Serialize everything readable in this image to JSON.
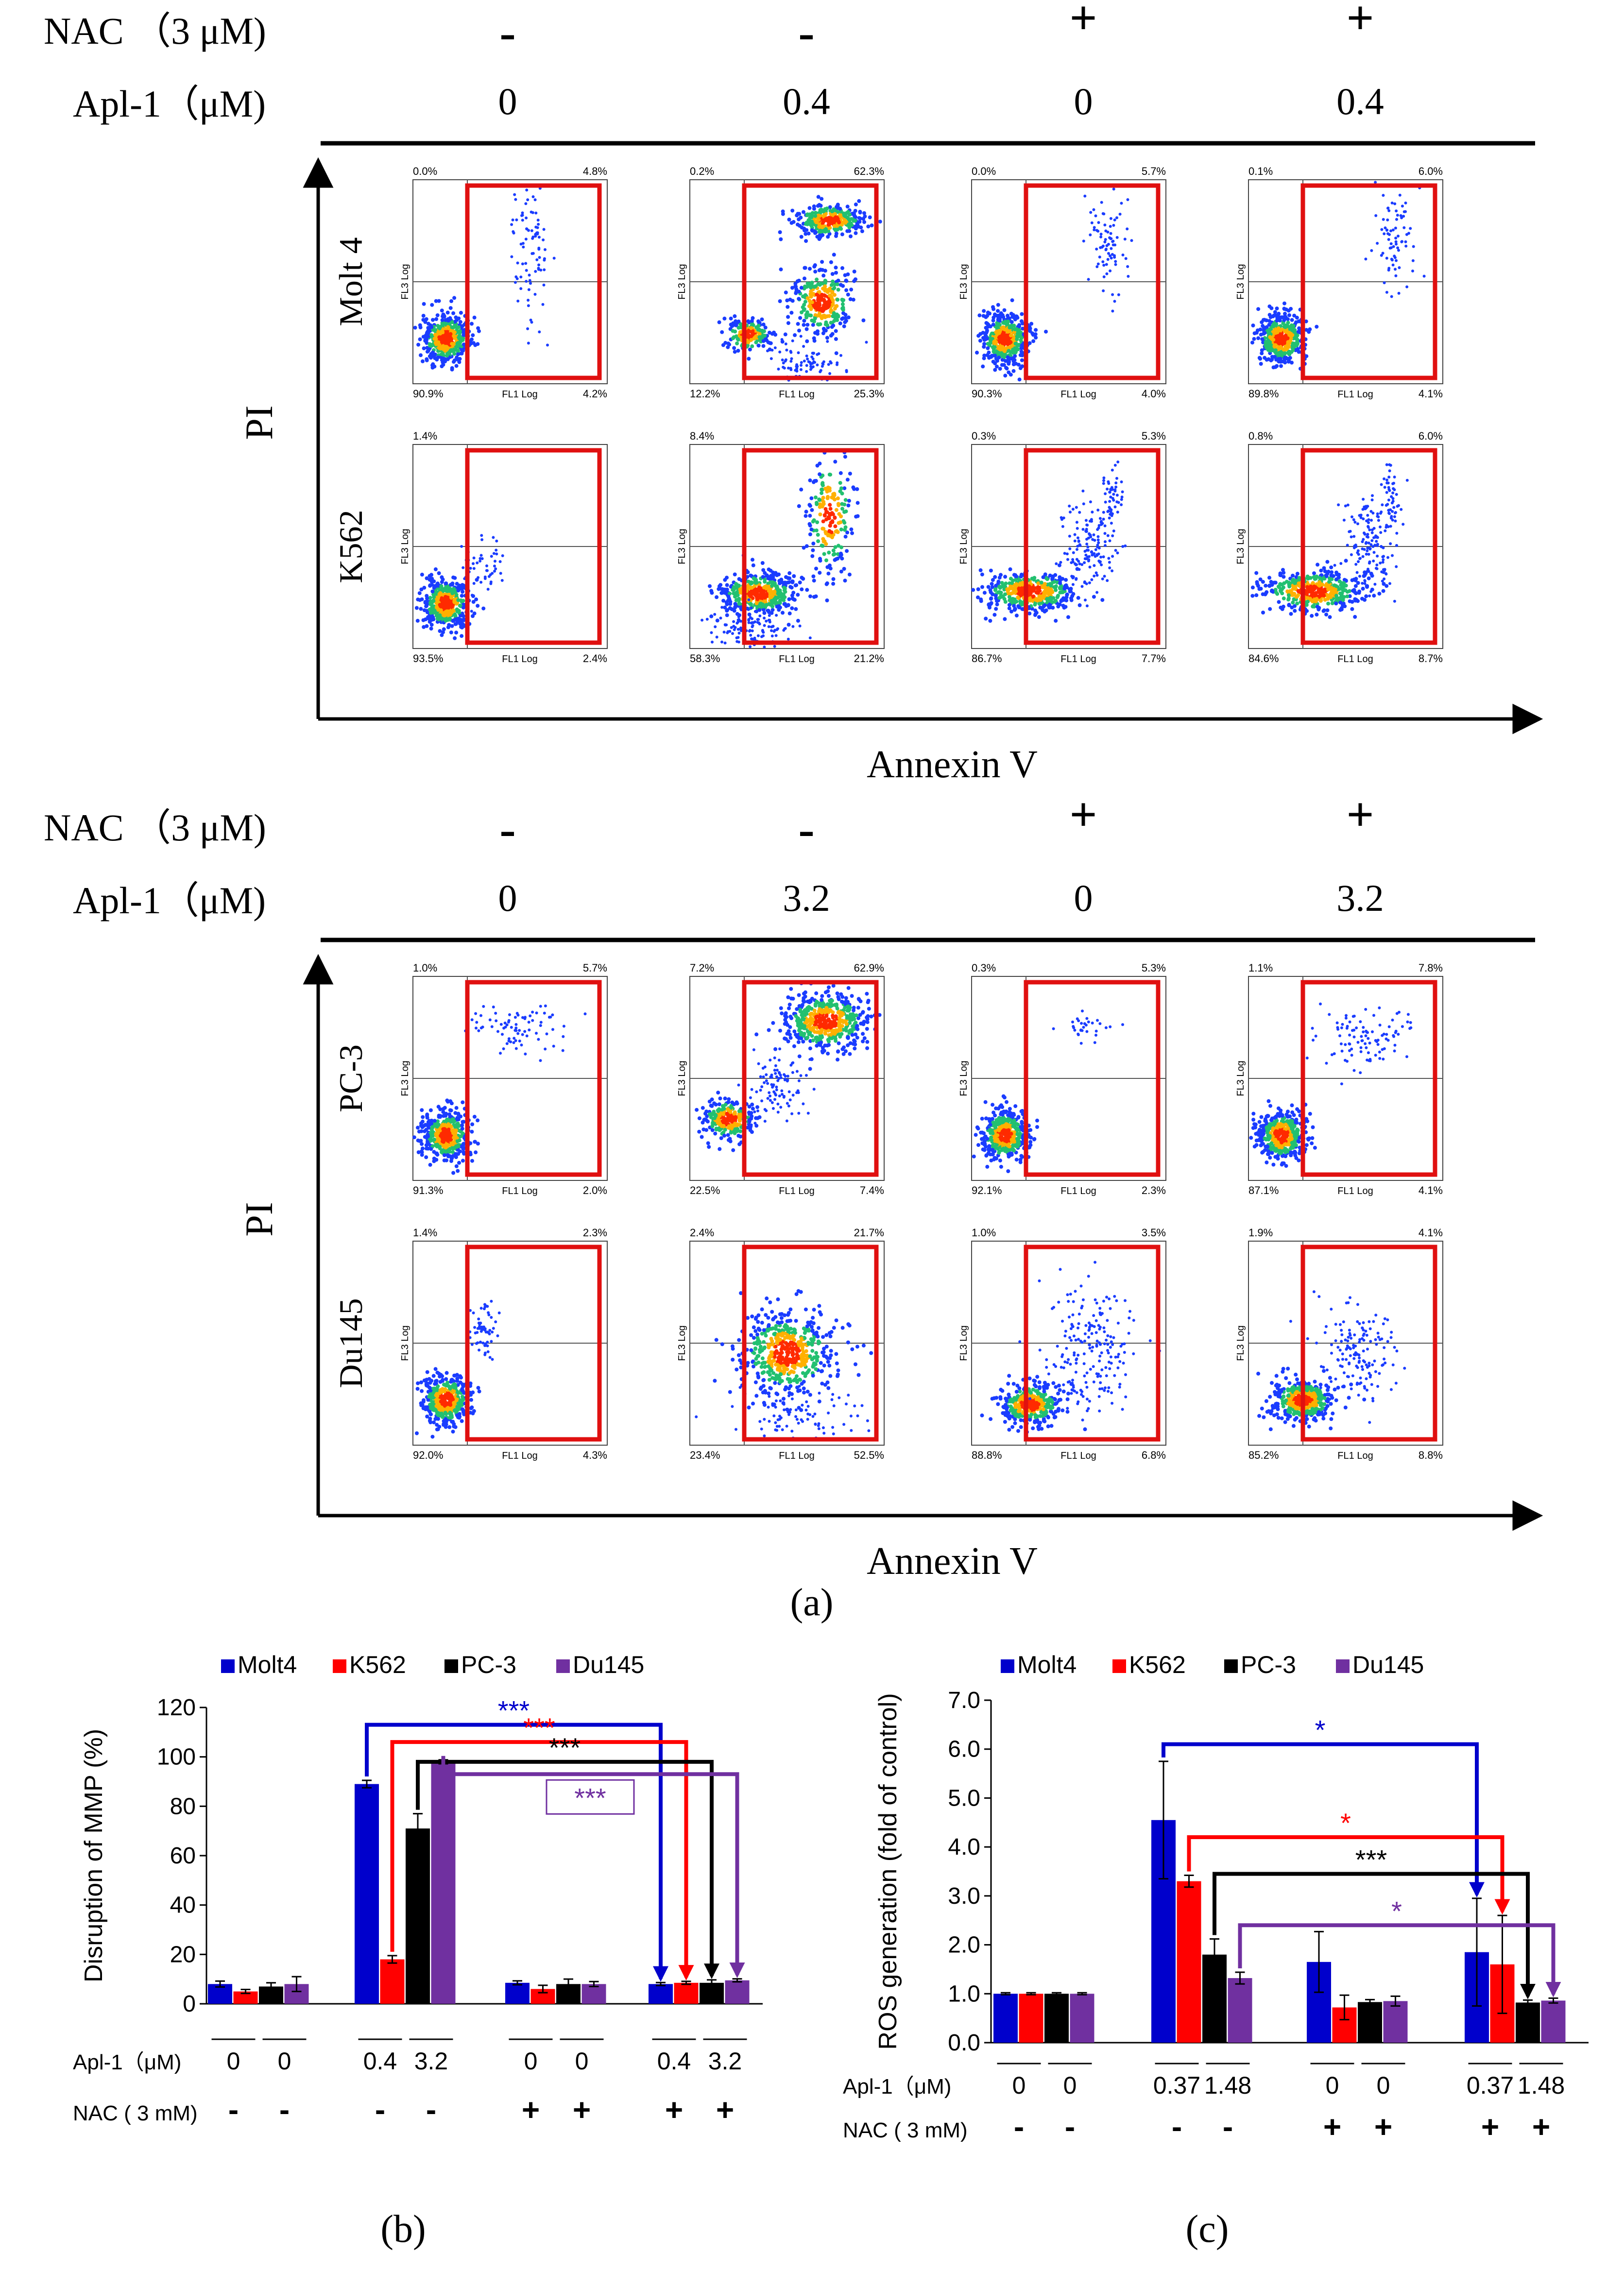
{
  "panel_a": {
    "label": "(a)",
    "top": {
      "nac_label": "NAC （3 μM)",
      "apl_label": "Apl-1（μM)",
      "nac_signs": [
        "-",
        "-",
        "+",
        "+"
      ],
      "apl_doses": [
        "0",
        "0.4",
        "0",
        "0.4"
      ],
      "y_label": "PI",
      "x_label": "Annexin V",
      "rows": [
        {
          "cell": "Molt 4",
          "plots": [
            {
              "ul": "0.0%",
              "ur": "4.8%",
              "ll": "90.9%",
              "lr": "4.2%"
            },
            {
              "ul": "0.2%",
              "ur": "62.3%",
              "ll": "12.2%",
              "lr": "25.3%"
            },
            {
              "ul": "0.0%",
              "ur": "5.7%",
              "ll": "90.3%",
              "lr": "4.0%"
            },
            {
              "ul": "0.1%",
              "ur": "6.0%",
              "ll": "89.8%",
              "lr": "4.1%"
            }
          ]
        },
        {
          "cell": "K562",
          "plots": [
            {
              "ul": "1.4%",
              "ur": "",
              "ll": "93.5%",
              "lr": "2.4%"
            },
            {
              "ul": "8.4%",
              "ur": "",
              "ll": "58.3%",
              "lr": "21.2%"
            },
            {
              "ul": "0.3%",
              "ur": "5.3%",
              "ll": "86.7%",
              "lr": "7.7%"
            },
            {
              "ul": "0.8%",
              "ur": "6.0%",
              "ll": "84.6%",
              "lr": "8.7%"
            }
          ]
        }
      ]
    },
    "bottom": {
      "nac_label": "NAC （3 μM)",
      "apl_label": "Apl-1（μM)",
      "nac_signs": [
        "-",
        "-",
        "+",
        "+"
      ],
      "apl_doses": [
        "0",
        "3.2",
        "0",
        "3.2"
      ],
      "y_label": "PI",
      "x_label": "Annexin V",
      "rows": [
        {
          "cell": "PC-3",
          "plots": [
            {
              "ul": "1.0%",
              "ur": "5.7%",
              "ll": "91.3%",
              "lr": "2.0%"
            },
            {
              "ul": "7.2%",
              "ur": "62.9%",
              "ll": "22.5%",
              "lr": "7.4%"
            },
            {
              "ul": "0.3%",
              "ur": "5.3%",
              "ll": "92.1%",
              "lr": "2.3%"
            },
            {
              "ul": "1.1%",
              "ur": "7.8%",
              "ll": "87.1%",
              "lr": "4.1%"
            }
          ]
        },
        {
          "cell": "Du145",
          "plots": [
            {
              "ul": "1.4%",
              "ur": "2.3%",
              "ll": "92.0%",
              "lr": "4.3%"
            },
            {
              "ul": "2.4%",
              "ur": "21.7%",
              "ll": "23.4%",
              "lr": "52.5%"
            },
            {
              "ul": "1.0%",
              "ur": "3.5%",
              "ll": "88.8%",
              "lr": "6.8%"
            },
            {
              "ul": "1.9%",
              "ur": "4.1%",
              "ll": "85.2%",
              "lr": "8.8%"
            }
          ]
        }
      ]
    },
    "axis_tick_labels": {
      "fl1": "FL1 Log",
      "fl3": "FL3 Log"
    }
  },
  "chart_data": [
    {
      "id": "b",
      "label": "(b)",
      "type": "bar",
      "ylabel": "Disruption of MMP (%)",
      "ylim": [
        0,
        120
      ],
      "yticks": [
        0,
        20,
        40,
        60,
        80,
        100,
        120
      ],
      "legend": [
        "Molt4",
        "K562",
        "PC-3",
        "Du145"
      ],
      "series_colors": [
        "#0000cc",
        "#ff0000",
        "#000000",
        "#7030a0"
      ],
      "groups": [
        {
          "values": [
            8,
            5,
            7,
            8
          ],
          "errors": [
            1.2,
            0.8,
            1.5,
            3.0
          ]
        },
        {
          "values": [
            89,
            18,
            71,
            98
          ],
          "errors": [
            1.5,
            1.5,
            6,
            0.8
          ]
        },
        {
          "values": [
            8.5,
            6,
            8,
            8
          ],
          "errors": [
            0.8,
            1.5,
            2,
            1
          ]
        },
        {
          "values": [
            8,
            8.5,
            8.5,
            9.5
          ],
          "errors": [
            0.6,
            0.6,
            1.2,
            0.6
          ]
        }
      ],
      "apl_label": "Apl-1（μM)",
      "nac_label": "NAC ( 3 mM)",
      "apl_ticks": [
        "0",
        "0",
        "0.4",
        "3.2",
        "0",
        "0",
        "0.4",
        "3.2"
      ],
      "nac_ticks": [
        "-",
        "-",
        "-",
        "-",
        "+",
        "+",
        "+",
        "+"
      ],
      "significance": [
        {
          "text": "***",
          "color": "#0000cc",
          "from": [
            1,
            0
          ],
          "to": [
            3,
            0
          ],
          "level": 113
        },
        {
          "text": "***",
          "color": "#ff0000",
          "from": [
            1,
            1
          ],
          "to": [
            3,
            1
          ],
          "level": 106
        },
        {
          "text": "***",
          "color": "#000000",
          "from": [
            1,
            2
          ],
          "to": [
            3,
            2
          ],
          "level": 98
        },
        {
          "text": "***",
          "color": "#7030a0",
          "from": [
            1,
            3
          ],
          "to": [
            3,
            3
          ],
          "level": 93,
          "boxed": true
        }
      ]
    },
    {
      "id": "c",
      "label": "(c)",
      "type": "bar",
      "ylabel": "ROS generation (fold of control)",
      "ylim": [
        0,
        7
      ],
      "yticks": [
        "0.0",
        "1.0",
        "2.0",
        "3.0",
        "4.0",
        "5.0",
        "6.0",
        "7.0"
      ],
      "legend": [
        "Molt4",
        "K562",
        "PC-3",
        "Du145"
      ],
      "series_colors": [
        "#0000cc",
        "#ff0000",
        "#000000",
        "#7030a0"
      ],
      "groups": [
        {
          "values": [
            1.0,
            1.0,
            1.0,
            1.0
          ],
          "errors": [
            0.02,
            0.02,
            0.02,
            0.02
          ]
        },
        {
          "values": [
            4.55,
            3.3,
            1.8,
            1.32
          ],
          "errors": [
            1.2,
            0.12,
            0.32,
            0.12
          ]
        },
        {
          "values": [
            1.65,
            0.72,
            0.83,
            0.85
          ],
          "errors": [
            0.62,
            0.25,
            0.05,
            0.1
          ]
        },
        {
          "values": [
            1.85,
            1.6,
            0.82,
            0.86
          ],
          "errors": [
            1.1,
            1.0,
            0.05,
            0.05
          ]
        }
      ],
      "apl_label": "Apl-1（μM)",
      "nac_label": "NAC ( 3 mM)",
      "apl_ticks": [
        "0",
        "0",
        "0.37",
        "1.48",
        "0",
        "0",
        "0.37",
        "1.48"
      ],
      "nac_ticks": [
        "-",
        "-",
        "-",
        "-",
        "+",
        "+",
        "+",
        "+"
      ],
      "significance": [
        {
          "text": "*",
          "color": "#0000cc",
          "from": [
            1,
            0
          ],
          "to": [
            3,
            0
          ],
          "level": 6.1
        },
        {
          "text": "*",
          "color": "#ff0000",
          "from": [
            1,
            1
          ],
          "to": [
            3,
            1
          ],
          "level": 4.2
        },
        {
          "text": "***",
          "color": "#000000",
          "from": [
            1,
            2
          ],
          "to": [
            3,
            2
          ],
          "level": 3.45
        },
        {
          "text": "*",
          "color": "#7030a0",
          "from": [
            1,
            3
          ],
          "to": [
            3,
            3
          ],
          "level": 2.4
        }
      ]
    }
  ]
}
